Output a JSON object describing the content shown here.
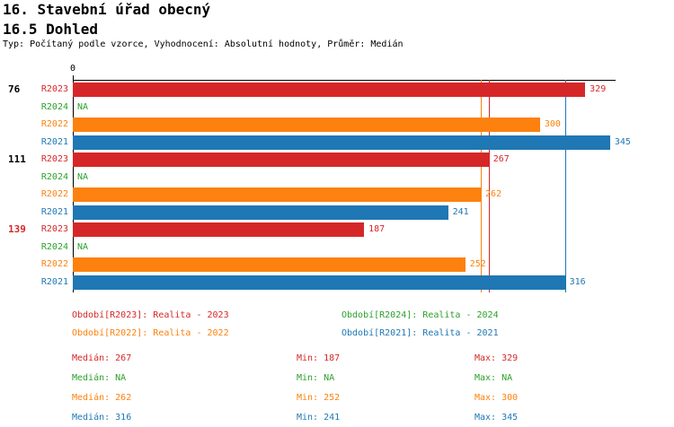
{
  "header": {
    "title": "16. Stavební úřad obecný",
    "subtitle": "16.5 Dohled",
    "meta": "Typ: Počítaný podle vzorce, Vyhodnocení: Absolutní hodnoty, Průměr: Medián"
  },
  "colors": {
    "red": "#d62728",
    "green": "#2ca02c",
    "orange": "#fd810e",
    "blue": "#1f77b4",
    "black": "#000000"
  },
  "chart_data": {
    "type": "bar",
    "orientation": "horizontal",
    "title": "16.5 Dohled",
    "axis": {
      "tick_label": "0",
      "xlim": [
        0,
        348
      ],
      "grid": false
    },
    "series_colors": {
      "R2023": "red",
      "R2024": "green",
      "R2022": "orange",
      "R2021": "blue"
    },
    "groups": [
      {
        "label": "76",
        "label_color": "black",
        "bars": [
          {
            "series": "R2023",
            "value": 329,
            "display": "329",
            "color": "red"
          },
          {
            "series": "R2024",
            "value": null,
            "display": "NA",
            "color": "green"
          },
          {
            "series": "R2022",
            "value": 300,
            "display": "300",
            "color": "orange"
          },
          {
            "series": "R2021",
            "value": 345,
            "display": "345",
            "color": "blue"
          }
        ]
      },
      {
        "label": "111",
        "label_color": "black",
        "bars": [
          {
            "series": "R2023",
            "value": 267,
            "display": "267",
            "color": "red"
          },
          {
            "series": "R2024",
            "value": null,
            "display": "NA",
            "color": "green"
          },
          {
            "series": "R2022",
            "value": 262,
            "display": "262",
            "color": "orange"
          },
          {
            "series": "R2021",
            "value": 241,
            "display": "241",
            "color": "blue"
          }
        ]
      },
      {
        "label": "139",
        "label_color": "red",
        "bars": [
          {
            "series": "R2023",
            "value": 187,
            "display": "187",
            "color": "red"
          },
          {
            "series": "R2024",
            "value": null,
            "display": "NA",
            "color": "green"
          },
          {
            "series": "R2022",
            "value": 252,
            "display": "252",
            "color": "orange"
          },
          {
            "series": "R2021",
            "value": 316,
            "display": "316",
            "color": "blue"
          }
        ]
      }
    ],
    "median_lines": [
      {
        "color": "orange",
        "value": 262
      },
      {
        "color": "red",
        "value": 267
      },
      {
        "color": "blue",
        "value": 316
      }
    ]
  },
  "legend": {
    "items": [
      {
        "color": "red",
        "text": "Období[R2023]: Realita - 2023"
      },
      {
        "color": "green",
        "text": "Období[R2024]: Realita - 2024"
      },
      {
        "color": "orange",
        "text": "Období[R2022]: Realita - 2022"
      },
      {
        "color": "blue",
        "text": "Období[R2021]: Realita - 2021"
      }
    ]
  },
  "stats": {
    "rows": [
      {
        "color": "red",
        "median": "Medián: 267",
        "min": "Min: 187",
        "max": "Max: 329"
      },
      {
        "color": "green",
        "median": "Medián: NA",
        "min": "Min: NA",
        "max": "Max: NA"
      },
      {
        "color": "orange",
        "median": "Medián: 262",
        "min": "Min: 252",
        "max": "Max: 300"
      },
      {
        "color": "blue",
        "median": "Medián: 316",
        "min": "Min: 241",
        "max": "Max: 345"
      }
    ]
  }
}
